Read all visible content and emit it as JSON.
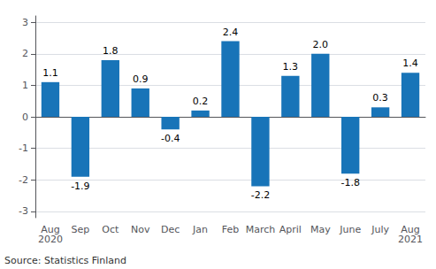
{
  "chart_data": {
    "type": "bar",
    "categories": [
      "Aug\n2020",
      "Sep",
      "Oct",
      "Nov",
      "Dec",
      "Jan",
      "Feb",
      "March",
      "April",
      "May",
      "June",
      "July",
      "Aug\n2021"
    ],
    "values": [
      1.1,
      -1.9,
      1.8,
      0.9,
      -0.4,
      0.2,
      2.4,
      -2.2,
      1.3,
      2.0,
      -1.8,
      0.3,
      1.4
    ],
    "value_labels": [
      "1.1",
      "-1.9",
      "1.8",
      "0.9",
      "-0.4",
      "0.2",
      "2.4",
      "-2.2",
      "1.3",
      "2.0",
      "-1.8",
      "0.3",
      "1.4"
    ],
    "color": "#1874b8",
    "ylim": [
      -3.2,
      3.2
    ],
    "yticks": [
      -3,
      -2,
      -1,
      0,
      1,
      2,
      3
    ],
    "grid": true,
    "data_labels": true,
    "annotation": "Source: Statistics Finland"
  }
}
